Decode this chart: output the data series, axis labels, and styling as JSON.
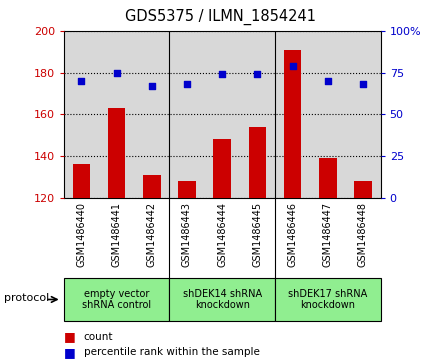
{
  "title": "GDS5375 / ILMN_1854241",
  "samples": [
    "GSM1486440",
    "GSM1486441",
    "GSM1486442",
    "GSM1486443",
    "GSM1486444",
    "GSM1486445",
    "GSM1486446",
    "GSM1486447",
    "GSM1486448"
  ],
  "counts": [
    136,
    163,
    131,
    128,
    148,
    154,
    191,
    139,
    128
  ],
  "percentiles": [
    70,
    75,
    67,
    68,
    74,
    74,
    79,
    70,
    68
  ],
  "ylim_left": [
    120,
    200
  ],
  "ylim_right": [
    0,
    100
  ],
  "yticks_left": [
    120,
    140,
    160,
    180,
    200
  ],
  "yticks_right": [
    0,
    25,
    50,
    75,
    100
  ],
  "bar_color": "#cc0000",
  "dot_color": "#0000cc",
  "bar_width": 0.5,
  "groups": [
    {
      "label": "empty vector\nshRNA control",
      "start": 0,
      "end": 3
    },
    {
      "label": "shDEK14 shRNA\nknockdown",
      "start": 3,
      "end": 6
    },
    {
      "label": "shDEK17 shRNA\nknockdown",
      "start": 6,
      "end": 9
    }
  ],
  "group_color": "#90ee90",
  "protocol_label": "protocol",
  "legend_count_label": "count",
  "legend_pct_label": "percentile rank within the sample",
  "tick_label_color_left": "#cc0000",
  "tick_label_color_right": "#0000cc",
  "background_color": "#ffffff",
  "plot_bg_color": "#d8d8d8",
  "label_bg_color": "#d8d8d8"
}
